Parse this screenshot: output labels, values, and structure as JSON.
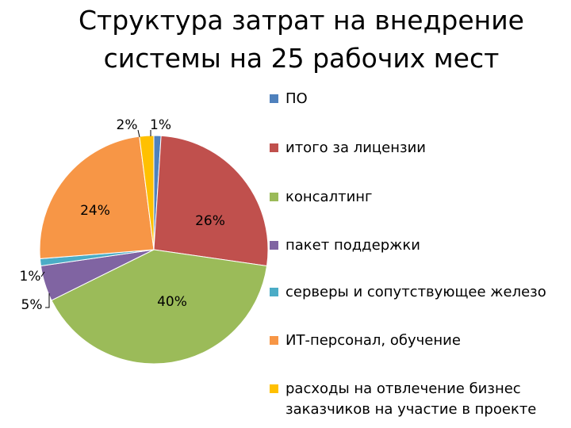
{
  "chart_data": {
    "type": "pie",
    "title_lines": [
      "Структура затрат на внедрение",
      "системы на 25 рабочих мест"
    ],
    "slices": [
      {
        "name": "ПО",
        "value": 1,
        "label": "1%",
        "color": "#4f81bd"
      },
      {
        "name": "итого за лицензии",
        "value": 26,
        "label": "26%",
        "color": "#c0504d"
      },
      {
        "name": "консалтинг",
        "value": 40,
        "label": "40%",
        "color": "#9bbb59"
      },
      {
        "name": "пакет поддержки",
        "value": 5,
        "label": "5%",
        "color": "#8064a2"
      },
      {
        "name": "серверы и сопутствующее железо",
        "value": 1,
        "label": "1%",
        "color": "#4bacc6"
      },
      {
        "name": "ИТ-персонал, обучение",
        "value": 24,
        "label": "24%",
        "color": "#f79646"
      },
      {
        "name": "расходы на отвлечение бизнес\nзаказчиков на участие в проекте",
        "value": 2,
        "label": "2%",
        "color": "#ffc000"
      }
    ],
    "legend_position": "right"
  }
}
